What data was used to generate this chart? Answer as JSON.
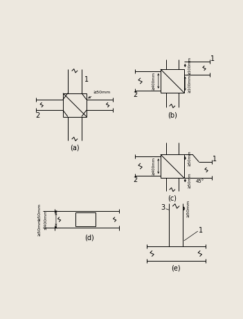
{
  "fig_width": 3.51,
  "fig_height": 4.61,
  "dpi": 100,
  "bg_color": "#ede8df",
  "line_color": "black",
  "line_width": 0.7,
  "labels": {
    "a": "(a)",
    "b": "(b)",
    "c": "(c)",
    "d": "(d)",
    "e": "(e)"
  },
  "annotations": {
    "ge50mm_a": "≥50mm",
    "ge100mm_b_top": "≥100mm",
    "ge100mm_b_bot": "≥100mm",
    "ge400mm_b": "≥400mm",
    "ge50mm_c_top": "≥50mm",
    "ge50mm_c_bot": "≥50mm",
    "ge400mm_c": "≥400mm",
    "angle_c": "45°",
    "le400mm_d": "≤400mm",
    "ge50mm_d_top": "≥50mm",
    "ge50mm_d_bot": "≥50mm",
    "ge50mm_e": "≥50mm"
  }
}
